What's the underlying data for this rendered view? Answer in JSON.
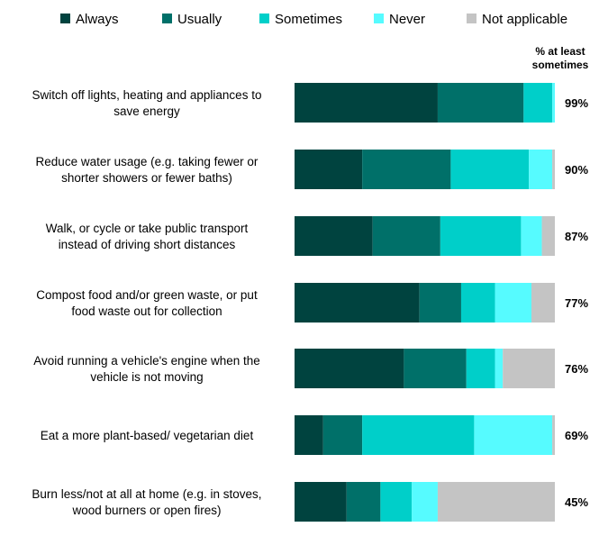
{
  "chart_data": {
    "type": "bar",
    "orientation": "horizontal",
    "stacked": true,
    "legend_position": "top",
    "value_unit": "% of respondents",
    "summary_header": [
      "% at least",
      "sometimes"
    ],
    "categories": [
      [
        "Switch off lights, heating and appliances to",
        "save energy"
      ],
      [
        "Reduce water usage (e.g. taking fewer or",
        "shorter showers or fewer baths)"
      ],
      [
        "Walk, or cycle or take public transport",
        "instead of driving short distances"
      ],
      [
        "Compost food and/or green waste, or put",
        "food waste out for collection"
      ],
      [
        "Avoid running a vehicle's engine when the",
        "vehicle is not moving"
      ],
      [
        "Eat a more plant-based/ vegetarian diet"
      ],
      [
        "Burn less/not at all at home (e.g. in stoves,",
        "wood burners or open fires)"
      ]
    ],
    "series": [
      {
        "name": "Always",
        "color": "#00433f",
        "values": [
          55,
          26,
          30,
          48,
          42,
          11,
          20
        ]
      },
      {
        "name": "Usually",
        "color": "#007069",
        "values": [
          33,
          34,
          26,
          16,
          24,
          15,
          13
        ]
      },
      {
        "name": "Sometimes",
        "color": "#00cfc9",
        "values": [
          11,
          30,
          31,
          13,
          11,
          43,
          12
        ]
      },
      {
        "name": "Never",
        "color": "#56fbff",
        "values": [
          1,
          9,
          8,
          14,
          3,
          30,
          10
        ]
      },
      {
        "name": "Not applicable",
        "color": "#c4c4c4",
        "values": [
          0,
          1,
          5,
          9,
          20,
          1,
          45
        ]
      }
    ],
    "at_least_sometimes": [
      "99%",
      "90%",
      "87%",
      "77%",
      "76%",
      "69%",
      "45%"
    ],
    "xlim": [
      0,
      100
    ],
    "grid": false
  }
}
